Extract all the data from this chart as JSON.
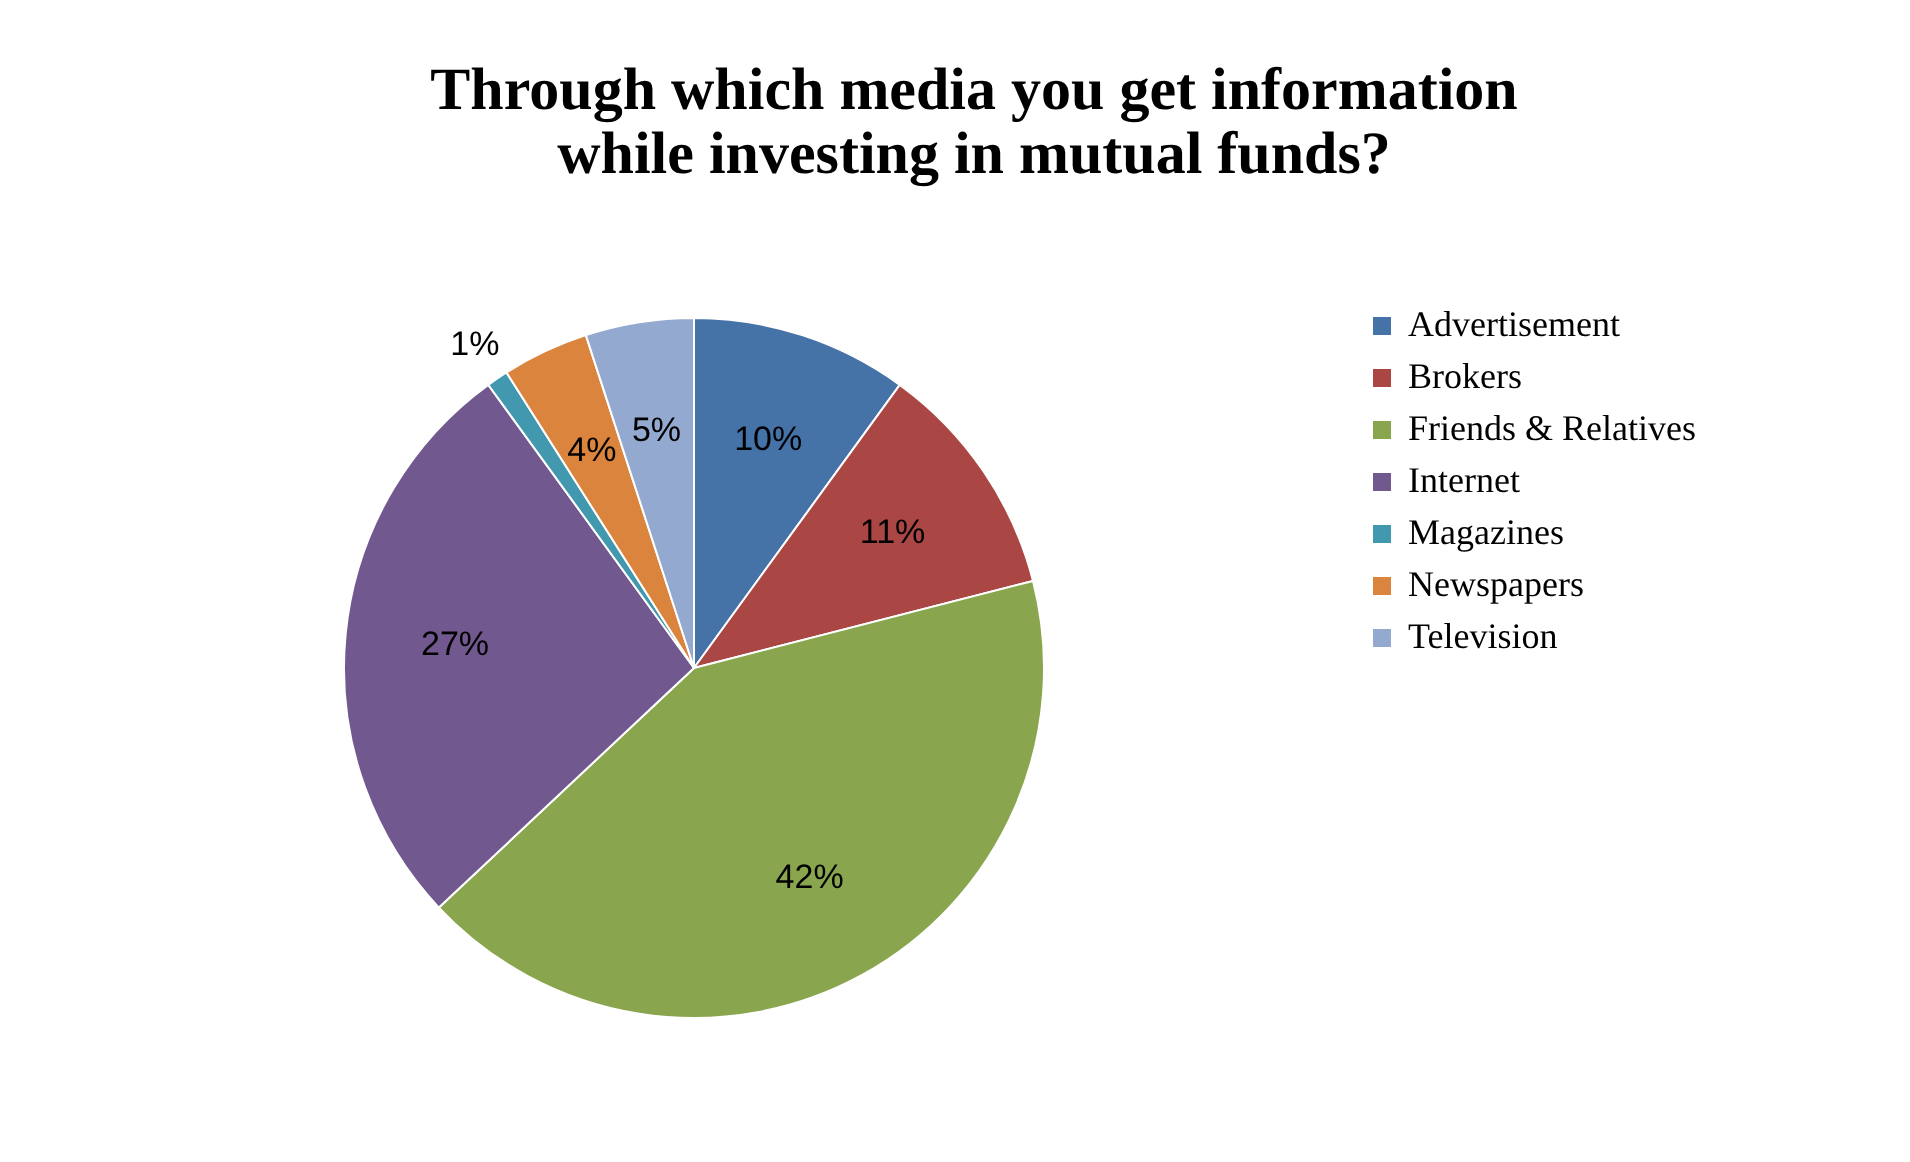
{
  "chart_data": {
    "type": "pie",
    "title": [
      "Through which media you get information",
      "while investing in mutual funds?"
    ],
    "categories": [
      "Advertisement",
      "Brokers",
      "Friends & Relatives",
      "Internet",
      "Magazines",
      "Newspapers",
      "Television"
    ],
    "values": [
      10,
      11,
      42,
      27,
      1,
      4,
      5
    ],
    "colors": [
      "#4572a7",
      "#aa4643",
      "#89a54e",
      "#71588f",
      "#4198af",
      "#db843d",
      "#93a9cf"
    ],
    "value_labels": [
      "10%",
      "11%",
      "42%",
      "27%",
      "1%",
      "4%",
      "5%"
    ],
    "legend": "right"
  }
}
